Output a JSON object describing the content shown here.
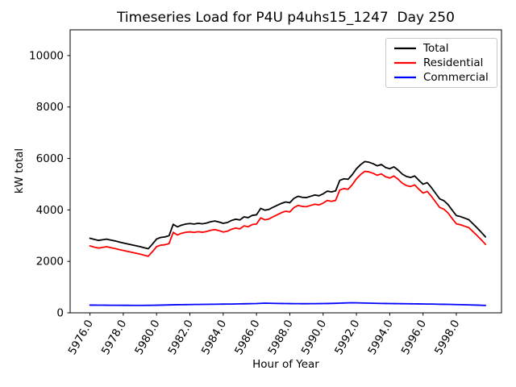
{
  "window": {
    "title": "Timeseries Load for P4U p4uhs15_1247  Day 250"
  },
  "chart_data": {
    "type": "line",
    "title": "Timeseries Load for P4U p4uhs15_1247  Day 250",
    "xlabel": "Hour of Year",
    "ylabel": "kW total",
    "grid": false,
    "legend_position": "upper right",
    "xlim": [
      5974.81,
      6000.71
    ],
    "ylim": [
      0,
      11000
    ],
    "yticks": [
      0,
      2000,
      4000,
      6000,
      8000,
      10000
    ],
    "ytick_labels": [
      "0",
      "2000",
      "4000",
      "6000",
      "8000",
      "10000"
    ],
    "xticks": [
      5976,
      5978,
      5980,
      5982,
      5984,
      5986,
      5988,
      5990,
      5992,
      5994,
      5996,
      5998
    ],
    "xtick_labels": [
      "5976.0",
      "5978.0",
      "5980.0",
      "5982.0",
      "5984.0",
      "5986.0",
      "5988.0",
      "5990.0",
      "5992.0",
      "5994.0",
      "5996.0",
      "5998.0"
    ],
    "x": [
      5976.0,
      5976.25,
      5976.5,
      5976.75,
      5977.0,
      5977.25,
      5977.5,
      5977.75,
      5978.0,
      5978.25,
      5978.5,
      5978.75,
      5979.0,
      5979.25,
      5979.5,
      5979.75,
      5980.0,
      5980.25,
      5980.5,
      5980.75,
      5981.0,
      5981.25,
      5981.5,
      5981.75,
      5982.0,
      5982.25,
      5982.5,
      5982.75,
      5983.0,
      5983.25,
      5983.5,
      5983.75,
      5984.0,
      5984.25,
      5984.5,
      5984.75,
      5985.0,
      5985.25,
      5985.5,
      5985.75,
      5986.0,
      5986.25,
      5986.5,
      5986.75,
      5987.0,
      5987.25,
      5987.5,
      5987.75,
      5988.0,
      5988.25,
      5988.5,
      5988.75,
      5989.0,
      5989.25,
      5989.5,
      5989.75,
      5990.0,
      5990.25,
      5990.5,
      5990.75,
      5991.0,
      5991.25,
      5991.5,
      5991.75,
      5992.0,
      5992.25,
      5992.5,
      5992.75,
      5993.0,
      5993.25,
      5993.5,
      5993.75,
      5994.0,
      5994.25,
      5994.5,
      5994.75,
      5995.0,
      5995.25,
      5995.5,
      5995.75,
      5996.0,
      5996.25,
      5996.5,
      5996.75,
      5997.0,
      5997.25,
      5997.5,
      5997.75,
      5998.0,
      5998.25,
      5998.5,
      5998.75,
      5999.0,
      5999.25,
      5999.5,
      5999.75
    ],
    "series": [
      {
        "name": "Total",
        "color": "#000000",
        "values": [
          2900,
          2855,
          2815,
          2840,
          2865,
          2830,
          2795,
          2755,
          2715,
          2680,
          2645,
          2610,
          2575,
          2530,
          2490,
          2670,
          2870,
          2930,
          2950,
          3000,
          3440,
          3340,
          3410,
          3450,
          3470,
          3450,
          3480,
          3460,
          3490,
          3540,
          3570,
          3530,
          3480,
          3510,
          3590,
          3640,
          3610,
          3730,
          3700,
          3790,
          3810,
          4060,
          3990,
          4020,
          4105,
          4180,
          4255,
          4310,
          4280,
          4450,
          4530,
          4490,
          4480,
          4530,
          4580,
          4550,
          4625,
          4730,
          4700,
          4740,
          5150,
          5210,
          5190,
          5370,
          5600,
          5760,
          5880,
          5855,
          5795,
          5715,
          5765,
          5650,
          5600,
          5675,
          5550,
          5395,
          5300,
          5260,
          5320,
          5150,
          5000,
          5060,
          4870,
          4650,
          4430,
          4360,
          4210,
          3990,
          3780,
          3740,
          3680,
          3620,
          3460,
          3300,
          3130,
          2950
        ]
      },
      {
        "name": "Residential",
        "color": "#ff0000",
        "values": [
          2600,
          2556,
          2517,
          2543,
          2569,
          2535,
          2501,
          2462,
          2423,
          2389,
          2355,
          2320,
          2285,
          2240,
          2199,
          2377,
          2574,
          2630,
          2646,
          2692,
          3128,
          3025,
          3092,
          3130,
          3148,
          3126,
          3154,
          3132,
          3160,
          3208,
          3236,
          3194,
          3142,
          3170,
          3248,
          3295,
          3262,
          3379,
          3346,
          3433,
          3450,
          3692,
          3615,
          3648,
          3737,
          3815,
          3893,
          3950,
          3922,
          4093,
          4174,
          4135,
          4125,
          4174,
          4223,
          4192,
          4265,
          4367,
          4334,
          4370,
          4775,
          4828,
          4802,
          4980,
          5212,
          5376,
          5500,
          5479,
          5423,
          5347,
          5400,
          5288,
          5240,
          5317,
          5194,
          5041,
          4948,
          4910,
          4972,
          4804,
          4656,
          4718,
          4530,
          4313,
          4096,
          4029,
          3882,
          3665,
          3459,
          3423,
          3367,
          3311,
          3156,
          3001,
          2837,
          2662
        ]
      },
      {
        "name": "Commercial",
        "color": "#0000ff",
        "values": [
          300,
          299,
          298,
          297,
          296,
          295,
          294,
          293,
          292,
          291,
          290,
          290,
          290,
          290,
          291,
          293,
          296,
          300,
          304,
          308,
          312,
          315,
          318,
          320,
          322,
          324,
          326,
          328,
          330,
          332,
          334,
          336,
          338,
          340,
          342,
          345,
          348,
          351,
          354,
          357,
          360,
          368,
          375,
          372,
          368,
          365,
          362,
          360,
          358,
          357,
          356,
          355,
          355,
          356,
          357,
          358,
          360,
          363,
          366,
          370,
          375,
          382,
          388,
          390,
          388,
          384,
          380,
          376,
          372,
          368,
          365,
          362,
          360,
          358,
          356,
          354,
          352,
          350,
          348,
          346,
          344,
          342,
          340,
          337,
          334,
          331,
          328,
          325,
          321,
          317,
          313,
          309,
          304,
          299,
          293,
          288
        ]
      }
    ]
  }
}
